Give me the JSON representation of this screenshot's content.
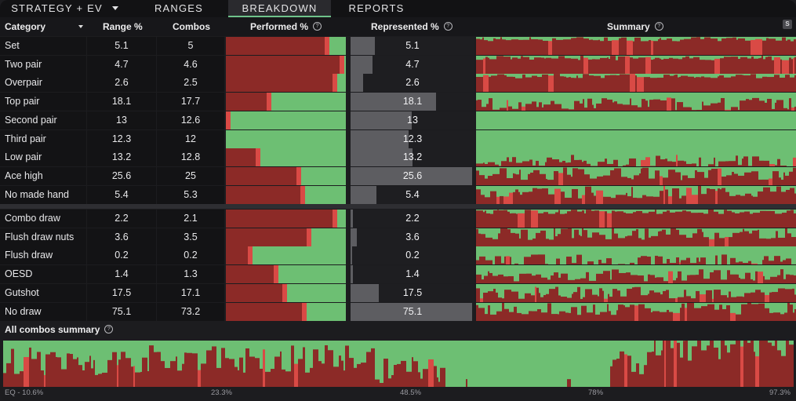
{
  "tabs": [
    {
      "label": "STRATEGY + EV",
      "dropdown": true
    },
    {
      "label": "RANGES"
    },
    {
      "label": "BREAKDOWN",
      "active": true
    },
    {
      "label": "REPORTS"
    }
  ],
  "header": {
    "category": "Category",
    "range_pct": "Range %",
    "combos": "Combos",
    "performed": "Performed %",
    "represented": "Represented %",
    "summary": "Summary",
    "help_glyph": "?",
    "s_badge": "S"
  },
  "colors": {
    "fold": "#8c2a27",
    "bet": "#d94a45",
    "check": "#6dbf73",
    "rep_bar": "#5d5d61",
    "active_tab": "#6fc38a"
  },
  "made_hands": [
    {
      "category": "Set",
      "range": "5.1",
      "combos": "5",
      "represented": "5.1",
      "performed_red": 0.86,
      "rep_fill": 0.2
    },
    {
      "category": "Two pair",
      "range": "4.7",
      "combos": "4.6",
      "represented": "4.7",
      "performed_red": 0.99,
      "rep_fill": 0.18
    },
    {
      "category": "Overpair",
      "range": "2.6",
      "combos": "2.5",
      "represented": "2.6",
      "performed_red": 0.93,
      "rep_fill": 0.1
    },
    {
      "category": "Top pair",
      "range": "18.1",
      "combos": "17.7",
      "represented": "18.1",
      "performed_red": 0.38,
      "rep_fill": 0.7
    },
    {
      "category": "Second pair",
      "range": "13",
      "combos": "12.6",
      "represented": "13",
      "performed_red": 0.04,
      "rep_fill": 0.5
    },
    {
      "category": "Third pair",
      "range": "12.3",
      "combos": "12",
      "represented": "12.3",
      "performed_red": 0.0,
      "rep_fill": 0.48
    },
    {
      "category": "Low pair",
      "range": "13.2",
      "combos": "12.8",
      "represented": "13.2",
      "performed_red": 0.29,
      "rep_fill": 0.51
    },
    {
      "category": "Ace high",
      "range": "25.6",
      "combos": "25",
      "represented": "25.6",
      "performed_red": 0.63,
      "rep_fill": 1.0
    },
    {
      "category": "No made hand",
      "range": "5.4",
      "combos": "5.3",
      "represented": "5.4",
      "performed_red": 0.66,
      "rep_fill": 0.21
    }
  ],
  "draws": [
    {
      "category": "Combo draw",
      "range": "2.2",
      "combos": "2.1",
      "represented": "2.2",
      "performed_red": 0.93,
      "rep_fill": 0.02
    },
    {
      "category": "Flush draw nuts",
      "range": "3.6",
      "combos": "3.5",
      "represented": "3.6",
      "performed_red": 0.71,
      "rep_fill": 0.05
    },
    {
      "category": "Flush draw",
      "range": "0.2",
      "combos": "0.2",
      "represented": "0.2",
      "performed_red": 0.22,
      "rep_fill": 0.01
    },
    {
      "category": "OESD",
      "range": "1.4",
      "combos": "1.3",
      "represented": "1.4",
      "performed_red": 0.44,
      "rep_fill": 0.02
    },
    {
      "category": "Gutshot",
      "range": "17.5",
      "combos": "17.1",
      "represented": "17.5",
      "performed_red": 0.51,
      "rep_fill": 0.23
    },
    {
      "category": "No draw",
      "range": "75.1",
      "combos": "73.2",
      "represented": "75.1",
      "performed_red": 0.67,
      "rep_fill": 1.0
    }
  ],
  "all_combos": {
    "title": "All combos summary",
    "eq_labels": [
      "EQ - 10.6%",
      "23.3%",
      "48.5%",
      "78%",
      "97.3%"
    ]
  }
}
